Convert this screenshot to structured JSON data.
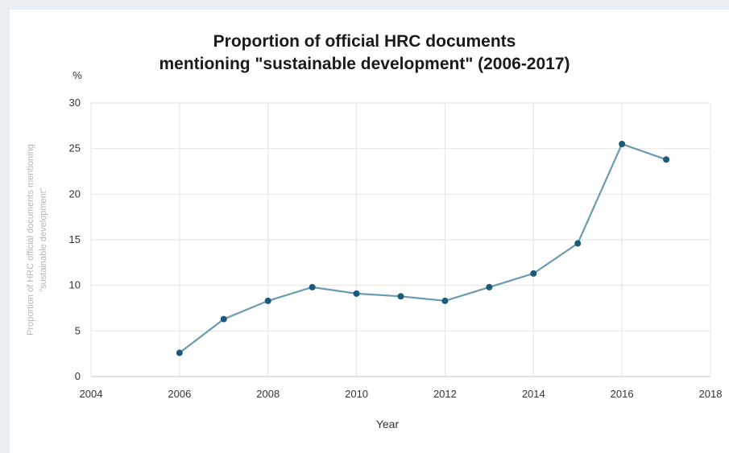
{
  "chart_data": {
    "type": "line",
    "title_lines": [
      "Proportion of official HRC documents",
      "mentioning \"sustainable development\" (2006-2017)"
    ],
    "unit_label": "%",
    "xlabel": "Year",
    "ylabel_lines": [
      "Proportion of HRC official documents mentioning",
      "\"sustainable development\""
    ],
    "xlim": [
      2004,
      2018
    ],
    "ylim": [
      0,
      30
    ],
    "x_ticks": [
      2004,
      2006,
      2008,
      2010,
      2012,
      2014,
      2016,
      2018
    ],
    "y_ticks": [
      0,
      5,
      10,
      15,
      20,
      25,
      30
    ],
    "grid": true,
    "legend": "none",
    "line_color": "#6a9bb0",
    "marker_color": "#1b5a78",
    "series": [
      {
        "x": [
          2006,
          2007,
          2008,
          2009,
          2010,
          2011,
          2012,
          2013,
          2014,
          2015,
          2016,
          2017
        ],
        "values": [
          2.6,
          6.3,
          8.3,
          9.8,
          9.1,
          8.8,
          8.3,
          9.8,
          11.3,
          14.6,
          25.5,
          23.8
        ]
      }
    ]
  }
}
